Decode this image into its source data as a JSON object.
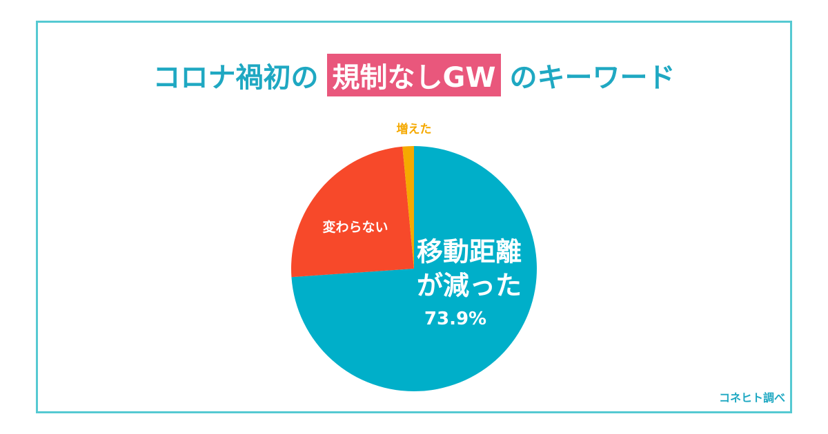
{
  "chart_data": {
    "type": "pie",
    "title_parts": [
      "コロナ禍初の",
      "規制なしGW",
      "のキーワード"
    ],
    "categories": [
      "移動距離\nが減った",
      "変わらない",
      "増えた"
    ],
    "values": [
      73.9,
      24.6,
      1.5
    ],
    "value_labels": [
      "73.9%",
      null,
      null
    ],
    "colors": [
      "#00afc9",
      "#f7492a",
      "#f5a900"
    ],
    "label_colors": [
      "#ffffff",
      "#ffffff",
      "#f5a900"
    ],
    "source": "コネヒト調べ"
  }
}
